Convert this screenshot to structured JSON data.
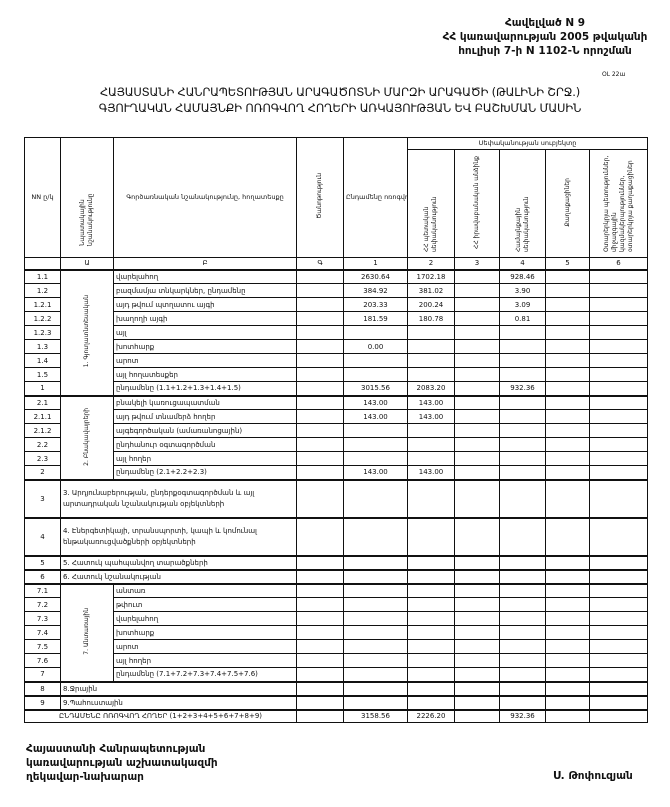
{
  "annex": {
    "line1": "Հավելված N 9",
    "line2": "ՀՀ կառավարության 2005 թվականի",
    "line3": "հուլիսի 7-ի N 1102-Ն որոշման"
  },
  "note": "ՕԼ 22ա",
  "title": {
    "line1": "ՀԱՅԱՍՏԱՆԻ ՀԱՆՐԱՊԵՏՈՒԹՅԱՆ ԱՐԱԳԱԾՈՏՆԻ ՄԱՐԶԻ ԱՐԱԳԱԾԻ (ԹԱԼԻՆԻ ՇՐՋ.)",
    "line2": "ԳՅՈՒՂԱԿԱՆ ՀԱՄԱՅՆՔԻ ՈՌՈԳՎՈՂ ՀՈՂԵՐԻ ԱՌԿԱՅՈՒԹՅԱՆ ԵՎ ԲԱՇԽՄԱՆ ՄԱՍԻՆ"
  },
  "table": {
    "headers": {
      "nn": "NN ը/կ",
      "purpose": "Նպատակային նշանակությունը",
      "function": "Գործառնական նշանակությունը, հողատեսքը",
      "remark": "Ծանոթություն",
      "total": "Ընդամենը ոռոգվող հողեր (2+3+4+5+6)",
      "ownership_group": "Սեփականության սուբյեկտը",
      "c2": "ՀՀ պետական սեփականություն",
      "c3": "ՀՀ իրավաբանական անձինք",
      "c4": "Համայնքային սեփականություն",
      "c5": "Քաղաքացիներ",
      "c6": "Օտարերկրյա պետություններ, միջազգային կազմակերպություններ, օտարերկրյա քաղաքացիներ"
    },
    "index_row": [
      "",
      "Ա",
      "Բ",
      "Գ",
      "1",
      "2",
      "3",
      "4",
      "5",
      "6"
    ],
    "groups": {
      "g1": "1. Գյուղատնտեսական",
      "g2": "2. Բնակավայրերի",
      "g7": "7. Անտառային"
    },
    "rows": [
      {
        "nn": "1.1",
        "group": "g1",
        "label": "վարելահող",
        "values": [
          "",
          "2630.64",
          "1702.18",
          "",
          "928.46",
          "",
          ""
        ]
      },
      {
        "nn": "1.2",
        "group": "g1",
        "label": "բազմամյա տնկարկներ, ընդամենը",
        "values": [
          "",
          "384.92",
          "381.02",
          "",
          "3.90",
          "",
          ""
        ]
      },
      {
        "nn": "1.2.1",
        "group": "g1",
        "label": "այդ թվում        պտղատու այգի",
        "values": [
          "",
          "203.33",
          "200.24",
          "",
          "3.09",
          "",
          ""
        ]
      },
      {
        "nn": "1.2.2",
        "group": "g1",
        "label": "                     խաղողի այգի",
        "values": [
          "",
          "181.59",
          "180.78",
          "",
          "0.81",
          "",
          ""
        ]
      },
      {
        "nn": "1.2.3",
        "group": "g1",
        "label": "այլ",
        "values": [
          "",
          "",
          "",
          "",
          "",
          "",
          ""
        ]
      },
      {
        "nn": "1.3",
        "group": "g1",
        "label": "խոտհարք",
        "values": [
          "",
          "0.00",
          "",
          "",
          "",
          "",
          ""
        ]
      },
      {
        "nn": "1.4",
        "group": "g1",
        "label": "արոտ",
        "values": [
          "",
          "",
          "",
          "",
          "",
          "",
          ""
        ]
      },
      {
        "nn": "1.5",
        "group": "g1",
        "label": "այլ հողատեսքեր",
        "values": [
          "",
          "",
          "",
          "",
          "",
          "",
          ""
        ]
      },
      {
        "nn": "1",
        "group": "g1",
        "label": "ընդամենը (1.1+1.2+1.3+1.4+1.5)",
        "values": [
          "",
          "3015.56",
          "2083.20",
          "",
          "932.36",
          "",
          ""
        ]
      },
      {
        "nn": "2.1",
        "group": "g2",
        "label": "բնակելի կառուցապատման",
        "values": [
          "",
          "143.00",
          "143.00",
          "",
          "",
          "",
          ""
        ]
      },
      {
        "nn": "2.1.1",
        "group": "g2",
        "label": "այդ թվում տնամերձ հողեր",
        "values": [
          "",
          "143.00",
          "143.00",
          "",
          "",
          "",
          ""
        ]
      },
      {
        "nn": "2.1.2",
        "group": "g2",
        "label": "այգեգործական (ամառանոցային)",
        "values": [
          "",
          "",
          "",
          "",
          "",
          "",
          ""
        ]
      },
      {
        "nn": "2.2",
        "group": "g2",
        "label": "ընդհանուր օգտագործման",
        "values": [
          "",
          "",
          "",
          "",
          "",
          "",
          ""
        ]
      },
      {
        "nn": "2.3",
        "group": "g2",
        "label": "այլ հողեր",
        "values": [
          "",
          "",
          "",
          "",
          "",
          "",
          ""
        ]
      },
      {
        "nn": "2",
        "group": "g2",
        "label": "ընդամենը (2.1+2.2+2.3)",
        "values": [
          "",
          "143.00",
          "143.00",
          "",
          "",
          "",
          ""
        ]
      },
      {
        "nn": "3",
        "label": "3. Արդյունաբերության, ընդերքօգտագործման և այլ արտադրական նշանակության օբյեկտների",
        "values": [
          "",
          "",
          "",
          "",
          "",
          "",
          ""
        ],
        "tall": true
      },
      {
        "nn": "4",
        "label": "4. Էներգետիկայի, տրանսպորտի, կապի և կոմունալ ենթակառուցվածքների օբյեկտների",
        "values": [
          "",
          "",
          "",
          "",
          "",
          "",
          ""
        ],
        "tall": true
      },
      {
        "nn": "5",
        "label": "5. Հատուկ պահպանվող տարածքների",
        "values": [
          "",
          "",
          "",
          "",
          "",
          "",
          ""
        ]
      },
      {
        "nn": "6",
        "label": "6. Հատուկ նշանակության",
        "values": [
          "",
          "",
          "",
          "",
          "",
          "",
          ""
        ]
      },
      {
        "nn": "7.1",
        "group": "g7",
        "label": "անտառ",
        "values": [
          "",
          "",
          "",
          "",
          "",
          "",
          ""
        ]
      },
      {
        "nn": "7.2",
        "group": "g7",
        "label": "թփուտ",
        "values": [
          "",
          "",
          "",
          "",
          "",
          "",
          ""
        ]
      },
      {
        "nn": "7.3",
        "group": "g7",
        "label": "վարելահող",
        "values": [
          "",
          "",
          "",
          "",
          "",
          "",
          ""
        ]
      },
      {
        "nn": "7.4",
        "group": "g7",
        "label": "խոտհարք",
        "values": [
          "",
          "",
          "",
          "",
          "",
          "",
          ""
        ]
      },
      {
        "nn": "7.5",
        "group": "g7",
        "label": "արոտ",
        "values": [
          "",
          "",
          "",
          "",
          "",
          "",
          ""
        ]
      },
      {
        "nn": "7.6",
        "group": "g7",
        "label": "այլ հողեր",
        "values": [
          "",
          "",
          "",
          "",
          "",
          "",
          ""
        ]
      },
      {
        "nn": "7",
        "group": "g7",
        "label": "ընդամենը (7.1+7.2+7.3+7.4+7.5+7.6)",
        "values": [
          "",
          "",
          "",
          "",
          "",
          "",
          ""
        ]
      },
      {
        "nn": "8",
        "label": "8.Ջրային",
        "values": [
          "",
          "",
          "",
          "",
          "",
          "",
          ""
        ]
      },
      {
        "nn": "9",
        "label": "9.Պահուստային",
        "values": [
          "",
          "",
          "",
          "",
          "",
          "",
          ""
        ]
      }
    ],
    "grand_total": {
      "label": "ԸՆԴԱՄԵՆԸ ՈՌՈԳՎՈՂ ՀՈՂԵՐ (1+2+3+4+5+6+7+8+9)",
      "values": [
        "",
        "3158.56",
        "2226.20",
        "",
        "932.36",
        "",
        ""
      ]
    }
  },
  "signature": {
    "line1": "Հայաստանի Հանրապետության",
    "line2": "կառավարության աշխատակազմի",
    "line3": "ղեկավար-նախարար",
    "name": "Ս. Թոփուզյան"
  }
}
